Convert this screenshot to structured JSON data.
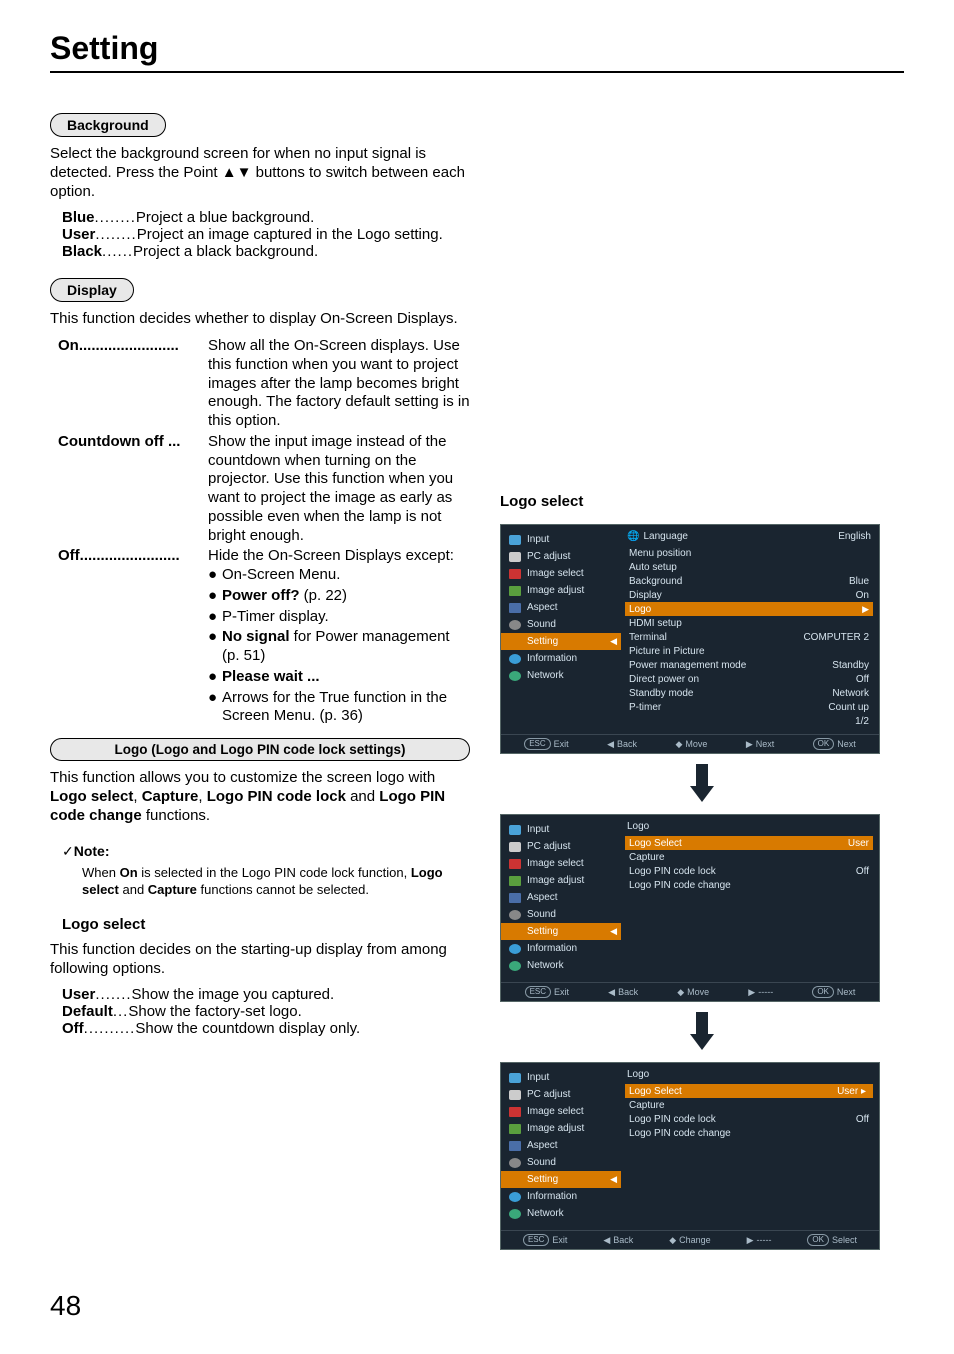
{
  "page": {
    "title": "Setting",
    "number": "48"
  },
  "sections": {
    "background": {
      "heading": "Background",
      "intro": "Select the background screen for when no input signal is detected. Press the Point ▲▼ buttons to switch between each option.",
      "items": [
        {
          "term": "Blue",
          "dots": "........",
          "desc": "Project a blue background."
        },
        {
          "term": "User",
          "dots": "........",
          "desc": "Project an image captured in the Logo setting."
        },
        {
          "term": "Black",
          "dots": "......",
          "desc": "Project a black background."
        }
      ]
    },
    "display": {
      "heading": "Display",
      "intro": "This function decides whether to display On-Screen Displays.",
      "rows": [
        {
          "term": "On........................",
          "desc": "Show all the On-Screen displays. Use this function when you want to project images after the lamp becomes bright enough. The factory default setting is in this option."
        },
        {
          "term": "Countdown off ...",
          "desc": "Show the input image instead of the countdown when turning on the projector. Use this function when you want to project the image as early as possible even when the lamp is not bright enough."
        },
        {
          "term": "Off........................",
          "desc": "Hide the On-Screen Displays except:"
        }
      ],
      "bullets": [
        {
          "pre": "● ",
          "text": "On-Screen Menu."
        },
        {
          "pre": "● ",
          "bold": "Power off?",
          "tail": " (p. 22)"
        },
        {
          "pre": "● ",
          "text": "P-Timer display."
        },
        {
          "pre": "● ",
          "bold": "No signal",
          "tail": " for Power management (p. 51)"
        },
        {
          "pre": "● ",
          "bold": "Please wait ..."
        },
        {
          "pre": "● ",
          "text": "Arrows for the True function in the Screen Menu. (p. 36)"
        }
      ]
    },
    "logo": {
      "heading": "Logo (Logo and Logo PIN code lock settings)",
      "intro_pre": "This function allows you to customize the screen logo with ",
      "b1": "Logo select",
      "c1": ", ",
      "b2": "Capture",
      "c2": ", ",
      "b3": "Logo PIN code lock",
      "c3": " and ",
      "b4": "Logo PIN code change",
      "c4": " functions."
    },
    "note": {
      "check": "✓",
      "title": "Note:",
      "text_pre": "When ",
      "b1": "On",
      "text_mid": " is selected in the Logo PIN code lock function, ",
      "b2": "Logo select",
      "and": " and ",
      "b3": "Capture",
      "text_post": " functions cannot be selected."
    },
    "logoselect": {
      "heading": "Logo select",
      "intro": "This function decides on the starting-up display from among following options.",
      "items": [
        {
          "term": "User",
          "dots": ".......",
          "desc": "Show the image you captured."
        },
        {
          "term": "Default",
          "dots": "...",
          "desc": "Show the factory-set logo."
        },
        {
          "term": "Off",
          "dots": "..........",
          "desc": "Show the countdown display only."
        }
      ]
    }
  },
  "right": {
    "heading": "Logo select"
  },
  "osd_nav": [
    {
      "icon": "ic-input",
      "label": "Input"
    },
    {
      "icon": "ic-pc",
      "label": "PC adjust"
    },
    {
      "icon": "ic-imgsel",
      "label": "Image select"
    },
    {
      "icon": "ic-imgadj",
      "label": "Image adjust"
    },
    {
      "icon": "ic-aspect",
      "label": "Aspect"
    },
    {
      "icon": "ic-sound",
      "label": "Sound"
    },
    {
      "icon": "ic-set",
      "label": "Setting",
      "selected": true
    },
    {
      "icon": "ic-info",
      "label": "Information"
    },
    {
      "icon": "ic-net",
      "label": "Network"
    }
  ],
  "osd1": {
    "title_icon": "🌐",
    "title": "Language",
    "title_val": "English",
    "rows": [
      {
        "l": "Menu position",
        "r": ""
      },
      {
        "l": "Auto setup",
        "r": ""
      },
      {
        "l": "Background",
        "r": "Blue"
      },
      {
        "l": "Display",
        "r": "On"
      },
      {
        "l": "Logo",
        "r": "",
        "hl": true,
        "arrow": true
      },
      {
        "l": "HDMI setup",
        "r": ""
      },
      {
        "l": "Terminal",
        "r": "COMPUTER 2"
      },
      {
        "l": "Picture in Picture",
        "r": ""
      },
      {
        "l": "Power management mode",
        "r": "Standby"
      },
      {
        "l": "Direct power on",
        "r": "Off"
      },
      {
        "l": "Standby mode",
        "r": "Network"
      },
      {
        "l": "P-timer",
        "r": "Count up"
      },
      {
        "l": "",
        "r": "1/2"
      }
    ],
    "footer": [
      {
        "key": "ESC",
        "label": "Exit"
      },
      {
        "sym": "◀",
        "label": "Back"
      },
      {
        "sym": "◆",
        "label": "Move"
      },
      {
        "sym": "▶",
        "label": "Next"
      },
      {
        "key": "OK",
        "label": "Next"
      }
    ]
  },
  "osd2": {
    "title": "Logo",
    "rows": [
      {
        "l": "Logo Select",
        "r": "User",
        "hl": true
      },
      {
        "l": "Capture",
        "r": ""
      },
      {
        "l": "Logo PIN code lock",
        "r": "Off"
      },
      {
        "l": "Logo PIN code change",
        "r": ""
      }
    ],
    "footer": [
      {
        "key": "ESC",
        "label": "Exit"
      },
      {
        "sym": "◀",
        "label": "Back"
      },
      {
        "sym": "◆",
        "label": "Move"
      },
      {
        "sym": "▶",
        "label": "-----"
      },
      {
        "key": "OK",
        "label": "Next"
      }
    ]
  },
  "osd3": {
    "title": "Logo",
    "rows": [
      {
        "l": "Logo Select",
        "r": "User",
        "hl": true,
        "badge": true
      },
      {
        "l": "Capture",
        "r": ""
      },
      {
        "l": "Logo PIN code lock",
        "r": "Off"
      },
      {
        "l": "Logo PIN code change",
        "r": ""
      }
    ],
    "footer": [
      {
        "key": "ESC",
        "label": "Exit"
      },
      {
        "sym": "◀",
        "label": "Back"
      },
      {
        "sym": "◆",
        "label": "Change"
      },
      {
        "sym": "▶",
        "label": "-----"
      },
      {
        "key": "OK",
        "label": "Select"
      }
    ]
  }
}
